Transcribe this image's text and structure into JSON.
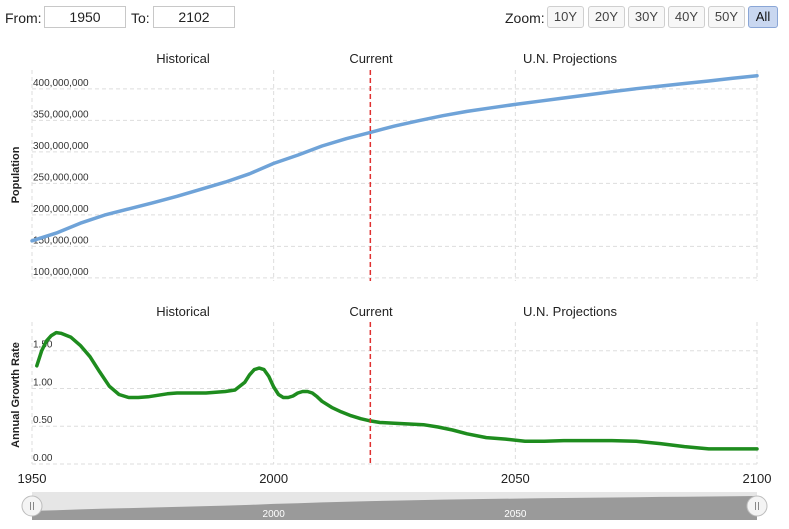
{
  "range": {
    "from_label": "From:",
    "from_value": "1950",
    "to_label": "To:",
    "to_value": "2102"
  },
  "zoom": {
    "label": "Zoom:",
    "buttons": [
      "10Y",
      "20Y",
      "30Y",
      "40Y",
      "50Y",
      "All"
    ],
    "active": "All"
  },
  "period_labels": [
    "Historical",
    "Current",
    "U.N. Projections"
  ],
  "current_year": 2020,
  "colors": {
    "population": "#6fa3d8",
    "growth": "#1e8c1e",
    "current_marker": "#e03030",
    "grid": "#dddddd"
  },
  "x_axis": {
    "range": [
      1950,
      2100
    ],
    "ticks": [
      1950,
      2000,
      2050,
      2100
    ]
  },
  "navigator": {
    "ticks": [
      2000,
      2050
    ]
  },
  "chart_data": [
    {
      "type": "line",
      "ylabel": "Population",
      "ylim": [
        95000000,
        430000000
      ],
      "yticks": [
        100000000,
        150000000,
        200000000,
        250000000,
        300000000,
        350000000,
        400000000
      ],
      "ytick_labels": [
        "100,000,000",
        "150,000,000",
        "200,000,000",
        "250,000,000",
        "300,000,000",
        "350,000,000",
        "400,000,000"
      ],
      "grid": true,
      "series": [
        {
          "x": [
            1950,
            1955,
            1960,
            1965,
            1970,
            1975,
            1980,
            1985,
            1990,
            1995,
            2000,
            2005,
            2010,
            2015,
            2020,
            2025,
            2030,
            2035,
            2040,
            2045,
            2050,
            2055,
            2060,
            2065,
            2070,
            2075,
            2080,
            2085,
            2090,
            2095,
            2100
          ],
          "y": [
            158800000,
            171000000,
            186700000,
            199700000,
            209500000,
            219100000,
            229500000,
            240700000,
            252100000,
            265200000,
            281700000,
            294900000,
            309300000,
            320900000,
            331000000,
            341000000,
            349500000,
            357500000,
            364200000,
            370000000,
            375400000,
            380500000,
            385500000,
            390500000,
            395500000,
            400300000,
            404500000,
            408600000,
            412600000,
            416800000,
            421000000
          ]
        }
      ]
    },
    {
      "type": "line",
      "ylabel": "Annual Growth Rate",
      "ylim": [
        0,
        1.88
      ],
      "yticks": [
        0,
        0.5,
        1.0,
        1.5
      ],
      "ytick_labels": [
        "0.00",
        "0.50",
        "1.00",
        "1.50"
      ],
      "grid": true,
      "series": [
        {
          "x": [
            1951,
            1952,
            1953,
            1954,
            1955,
            1956,
            1958,
            1960,
            1962,
            1964,
            1966,
            1968,
            1970,
            1972,
            1974,
            1976,
            1978,
            1980,
            1982,
            1984,
            1986,
            1988,
            1990,
            1992,
            1994,
            1995,
            1996,
            1997,
            1998,
            1999,
            2000,
            2001,
            2002,
            2003,
            2004,
            2005,
            2006,
            2007,
            2008,
            2009,
            2010,
            2012,
            2014,
            2016,
            2018,
            2020,
            2022,
            2025,
            2028,
            2031,
            2034,
            2037,
            2040,
            2044,
            2048,
            2052,
            2056,
            2060,
            2065,
            2070,
            2075,
            2080,
            2085,
            2090,
            2095,
            2100
          ],
          "y": [
            1.3,
            1.5,
            1.63,
            1.7,
            1.74,
            1.73,
            1.68,
            1.57,
            1.42,
            1.22,
            1.03,
            0.92,
            0.88,
            0.88,
            0.89,
            0.91,
            0.93,
            0.94,
            0.94,
            0.94,
            0.94,
            0.95,
            0.96,
            0.98,
            1.08,
            1.18,
            1.25,
            1.27,
            1.25,
            1.16,
            1.02,
            0.92,
            0.88,
            0.88,
            0.9,
            0.94,
            0.96,
            0.96,
            0.94,
            0.89,
            0.83,
            0.75,
            0.69,
            0.64,
            0.6,
            0.57,
            0.55,
            0.54,
            0.53,
            0.52,
            0.49,
            0.45,
            0.4,
            0.35,
            0.33,
            0.3,
            0.3,
            0.31,
            0.31,
            0.31,
            0.3,
            0.27,
            0.23,
            0.2,
            0.2,
            0.2
          ]
        }
      ]
    }
  ]
}
